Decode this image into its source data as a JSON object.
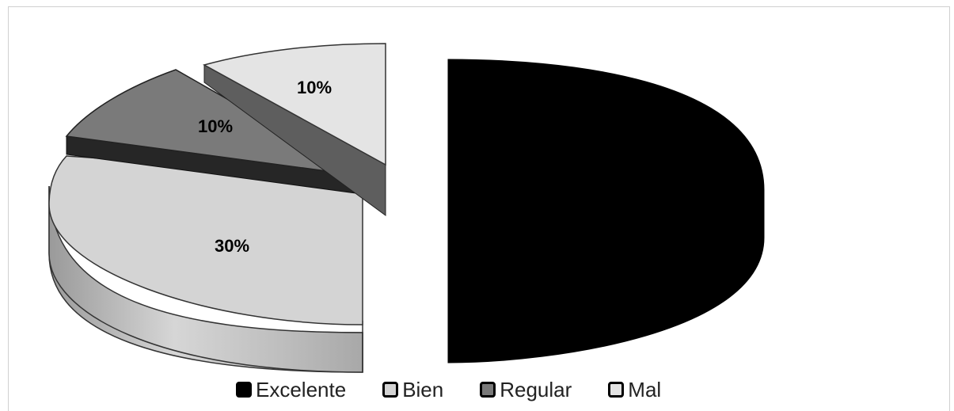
{
  "chart_data": {
    "type": "pie",
    "title": "",
    "categories": [
      "Excelente",
      "Bien",
      "Regular",
      "Mal"
    ],
    "values": [
      50,
      30,
      10,
      10
    ],
    "data_labels": [
      "",
      "30%",
      "10%",
      "10%"
    ],
    "colors": [
      "#000000",
      "#d4d4d4",
      "#7a7a7a",
      "#e4e4e4"
    ],
    "style": "3d-exploded",
    "legend_position": "bottom"
  }
}
